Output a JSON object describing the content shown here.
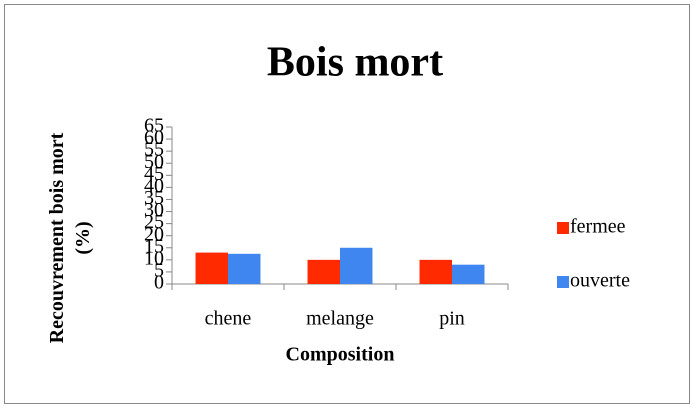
{
  "chart_data": {
    "type": "bar",
    "title": "Bois mort",
    "y_label": "Recouvrement bois mort (%)",
    "x_label": "Composition",
    "categories": [
      "chene",
      "melange",
      "pin"
    ],
    "series": [
      {
        "name": "fermee",
        "color": "#ff2a00",
        "values": [
          13,
          10,
          10
        ]
      },
      {
        "name": "ouverte",
        "color": "#3f86f0",
        "values": [
          12.5,
          15,
          8
        ]
      }
    ],
    "ylim": [
      0,
      65
    ],
    "yticks": [
      0,
      5,
      10,
      15,
      20,
      25,
      30,
      35,
      40,
      45,
      50,
      55,
      60,
      65
    ],
    "legend": "right"
  }
}
